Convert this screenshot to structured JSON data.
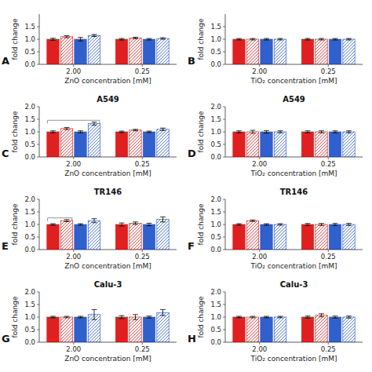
{
  "chart_data": [
    {
      "type": "bar",
      "panel_label": "A",
      "xlabel": "ZnO concentration [mM]",
      "ylabel": "fold change",
      "categories": [
        "2.00",
        "0.25"
      ],
      "series": [
        {
          "type": "bar",
          "color": "#e02020",
          "values": [
            1.0,
            1.0
          ],
          "errors": [
            0.04,
            0.03
          ]
        },
        {
          "type": "hatched",
          "color": "#e02020",
          "values": [
            1.1,
            1.05
          ],
          "errors": [
            0.04,
            0.03
          ]
        },
        {
          "type": "bar",
          "color": "#3060cc",
          "values": [
            1.0,
            1.0
          ],
          "errors": [
            0.07,
            0.03
          ]
        },
        {
          "type": "hatched",
          "color": "#3060cc",
          "values": [
            1.15,
            1.03
          ],
          "errors": [
            0.04,
            0.03
          ]
        }
      ],
      "ylim": [
        0.0,
        2.0
      ],
      "yticks": [
        {
          "value": 0.0,
          "label": "0.0"
        },
        0.5,
        {
          "value": 1.0,
          "label": "1.0"
        },
        1.5
      ]
    },
    {
      "type": "bar",
      "panel_label": "B",
      "xlabel": "TiO₂ concentration [mM]",
      "ylabel": "fold change",
      "categories": [
        "2.00",
        "0.25"
      ],
      "series": [
        {
          "type": "bar",
          "color": "#e02020",
          "values": [
            1.0,
            1.0
          ],
          "errors": [
            0.03,
            0.03
          ]
        },
        {
          "type": "hatched",
          "color": "#e02020",
          "values": [
            1.0,
            1.0
          ],
          "errors": [
            0.03,
            0.03
          ]
        },
        {
          "type": "bar",
          "color": "#3060cc",
          "values": [
            1.0,
            1.0
          ],
          "errors": [
            0.03,
            0.03
          ]
        },
        {
          "type": "hatched",
          "color": "#3060cc",
          "values": [
            1.0,
            1.0
          ],
          "errors": [
            0.03,
            0.03
          ]
        }
      ],
      "ylim": [
        0.0,
        2.0
      ],
      "yticks": [
        {
          "value": 0.0,
          "label": "0.0"
        },
        0.5,
        {
          "value": 1.0,
          "label": "1.0"
        },
        1.5
      ]
    },
    {
      "type": "bar",
      "panel_label": "C",
      "title": "A549",
      "xlabel": "ZnO concentration [mM]",
      "ylabel": "fold change",
      "categories": [
        "2.00",
        "0.25"
      ],
      "series": [
        {
          "type": "bar",
          "color": "#e02020",
          "values": [
            1.0,
            1.0
          ],
          "errors": [
            0.04,
            0.03
          ]
        },
        {
          "type": "hatched",
          "color": "#e02020",
          "values": [
            1.13,
            1.07
          ],
          "errors": [
            0.04,
            0.03
          ]
        },
        {
          "type": "bar",
          "color": "#3060cc",
          "values": [
            1.0,
            1.0
          ],
          "errors": [
            0.04,
            0.03
          ]
        },
        {
          "type": "hatched",
          "color": "#3060cc",
          "values": [
            1.33,
            1.1
          ],
          "errors": [
            0.06,
            0.05
          ]
        }
      ],
      "brackets": [
        {
          "category": 0,
          "from_series": 0,
          "to_series": 3,
          "y": 1.46
        }
      ],
      "ylim": [
        0.0,
        2.0
      ],
      "yticks": [
        {
          "value": 0.0,
          "label": "0.0"
        },
        0.5,
        {
          "value": 1.0,
          "label": "1.0"
        },
        1.5,
        {
          "value": 2.0,
          "label": "2.0"
        }
      ]
    },
    {
      "type": "bar",
      "panel_label": "D",
      "title": "A549",
      "xlabel": "TiO₂ concentration [mM]",
      "ylabel": "fold change",
      "categories": [
        "2.00",
        "0.25"
      ],
      "series": [
        {
          "type": "bar",
          "color": "#e02020",
          "values": [
            1.0,
            1.0
          ],
          "errors": [
            0.04,
            0.04
          ]
        },
        {
          "type": "hatched",
          "color": "#e02020",
          "values": [
            1.0,
            1.0
          ],
          "errors": [
            0.06,
            0.04
          ]
        },
        {
          "type": "bar",
          "color": "#3060cc",
          "values": [
            1.0,
            1.0
          ],
          "errors": [
            0.05,
            0.04
          ]
        },
        {
          "type": "hatched",
          "color": "#3060cc",
          "values": [
            1.0,
            1.0
          ],
          "errors": [
            0.04,
            0.04
          ]
        }
      ],
      "ylim": [
        0.0,
        2.0
      ],
      "yticks": [
        {
          "value": 0.0,
          "label": "0.0"
        },
        0.5,
        {
          "value": 1.0,
          "label": "1.0"
        },
        1.5,
        {
          "value": 2.0,
          "label": "2.0"
        }
      ]
    },
    {
      "type": "bar",
      "panel_label": "E",
      "title": "TR146",
      "xlabel": "ZnO concentration [mM]",
      "ylabel": "fold change",
      "categories": [
        "2.00",
        "0.25"
      ],
      "series": [
        {
          "type": "bar",
          "color": "#e02020",
          "values": [
            1.0,
            1.0
          ],
          "errors": [
            0.03,
            0.06
          ]
        },
        {
          "type": "hatched",
          "color": "#e02020",
          "values": [
            1.15,
            1.05
          ],
          "errors": [
            0.04,
            0.05
          ]
        },
        {
          "type": "bar",
          "color": "#3060cc",
          "values": [
            1.0,
            1.0
          ],
          "errors": [
            0.03,
            0.05
          ]
        },
        {
          "type": "hatched",
          "color": "#3060cc",
          "values": [
            1.15,
            1.2
          ],
          "errors": [
            0.08,
            0.1
          ]
        }
      ],
      "brackets": [
        {
          "category": 0,
          "from_series": 0,
          "to_series": 1,
          "y": 1.26
        }
      ],
      "ylim": [
        0.0,
        2.0
      ],
      "yticks": [
        {
          "value": 0.0,
          "label": "0.0"
        },
        0.5,
        {
          "value": 1.0,
          "label": "1.0"
        },
        1.5,
        {
          "value": 2.0,
          "label": "2.0"
        }
      ]
    },
    {
      "type": "bar",
      "panel_label": "F",
      "title": "TR146",
      "xlabel": "TiO₂ concentration [mM]",
      "ylabel": "fold change",
      "categories": [
        "2.00",
        "0.25"
      ],
      "series": [
        {
          "type": "bar",
          "color": "#e02020",
          "values": [
            1.0,
            1.0
          ],
          "errors": [
            0.03,
            0.04
          ]
        },
        {
          "type": "hatched",
          "color": "#e02020",
          "values": [
            1.15,
            1.0
          ],
          "errors": [
            0.03,
            0.04
          ]
        },
        {
          "type": "bar",
          "color": "#3060cc",
          "values": [
            1.0,
            1.0
          ],
          "errors": [
            0.03,
            0.04
          ]
        },
        {
          "type": "hatched",
          "color": "#3060cc",
          "values": [
            1.0,
            1.0
          ],
          "errors": [
            0.03,
            0.04
          ]
        }
      ],
      "ylim": [
        0.0,
        2.0
      ],
      "yticks": [
        {
          "value": 0.0,
          "label": "0.0"
        },
        0.5,
        {
          "value": 1.0,
          "label": "1.0"
        },
        1.5,
        {
          "value": 2.0,
          "label": "2.0"
        }
      ]
    },
    {
      "type": "bar",
      "panel_label": "G",
      "title": "Calu-3",
      "xlabel": "ZnO concentration [mM]",
      "ylabel": "fold change",
      "categories": [
        "2.00",
        "0.25"
      ],
      "series": [
        {
          "type": "bar",
          "color": "#e02020",
          "values": [
            1.0,
            1.0
          ],
          "errors": [
            0.03,
            0.06
          ]
        },
        {
          "type": "hatched",
          "color": "#e02020",
          "values": [
            1.0,
            1.0
          ],
          "errors": [
            0.03,
            0.1
          ]
        },
        {
          "type": "bar",
          "color": "#3060cc",
          "values": [
            1.0,
            1.0
          ],
          "errors": [
            0.03,
            0.04
          ]
        },
        {
          "type": "hatched",
          "color": "#3060cc",
          "values": [
            1.1,
            1.18
          ],
          "errors": [
            0.2,
            0.12
          ]
        }
      ],
      "ylim": [
        0.0,
        2.0
      ],
      "yticks": [
        {
          "value": 0.0,
          "label": "0.0"
        },
        0.5,
        {
          "value": 1.0,
          "label": "1.0"
        },
        1.5,
        {
          "value": 2.0,
          "label": "2.0"
        }
      ]
    },
    {
      "type": "bar",
      "panel_label": "H",
      "title": "Calu-3",
      "xlabel": "TiO₂ concentration [mM]",
      "ylabel": "fold change",
      "categories": [
        "2.00",
        "0.25"
      ],
      "series": [
        {
          "type": "bar",
          "color": "#e02020",
          "values": [
            1.0,
            1.0
          ],
          "errors": [
            0.03,
            0.04
          ]
        },
        {
          "type": "hatched",
          "color": "#e02020",
          "values": [
            1.0,
            1.07
          ],
          "errors": [
            0.03,
            0.06
          ]
        },
        {
          "type": "bar",
          "color": "#3060cc",
          "values": [
            1.0,
            1.0
          ],
          "errors": [
            0.03,
            0.04
          ]
        },
        {
          "type": "hatched",
          "color": "#3060cc",
          "values": [
            1.0,
            1.0
          ],
          "errors": [
            0.03,
            0.04
          ]
        }
      ],
      "ylim": [
        0.0,
        2.0
      ],
      "yticks": [
        {
          "value": 0.0,
          "label": "0.0"
        },
        0.5,
        {
          "value": 1.0,
          "label": "1.0"
        },
        1.5,
        {
          "value": 2.0,
          "label": "2.0"
        }
      ]
    }
  ]
}
